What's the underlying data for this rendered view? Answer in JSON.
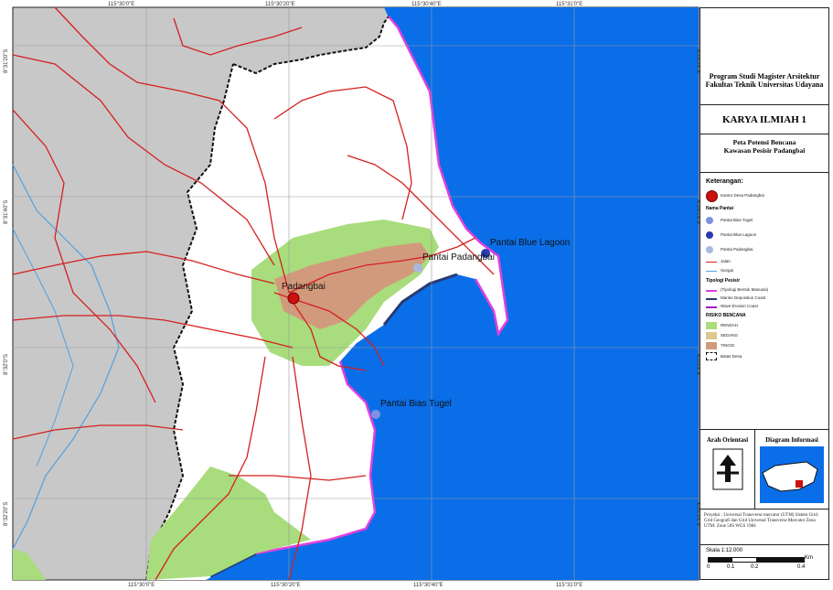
{
  "coords_top": [
    "115°30'0\"E",
    "115°30'20\"E",
    "115°30'40\"E",
    "115°31'0\"E"
  ],
  "coords_bottom": [
    "115°30'0\"E",
    "115°30'20\"E",
    "115°30'40\"E",
    "115°31'0\"E"
  ],
  "coords_left": [
    "8°31'20\"S",
    "8°31'40\"S",
    "8°32'0\"S",
    "8°32'20\"S"
  ],
  "coords_right": [
    "8°31'20\"S",
    "8°31'40\"S",
    "8°32'0\"S",
    "8°32'20\"S"
  ],
  "places": {
    "padangbai": "Padangbai",
    "padangbai_beach": "Pantai Padangbai",
    "blue_lagoon": "Pantai Blue Lagoon",
    "bias_tugel": "Pantai Bias Tugel"
  },
  "panel": {
    "institution": "Program Studi Magister Arsitektur Fakultas Teknik Universitas Udayana",
    "doc_type": "KARYA ILMIAH 1",
    "map_title": "Peta Potensi Bencana Kawasan Pesisir Padangbai",
    "legend_title": "Keterangan:",
    "village_office": "Kantor Desa Padangbai",
    "beach_name_title": "Nama Pantai",
    "beaches": [
      "Pantai Bias Tugel",
      "Pantai Blue Lagoon",
      "Pantai Padangbai"
    ],
    "road": "Jalan",
    "river": "Sungai",
    "coast_type_title": "Tipologi Pesisir",
    "coast_types": [
      "(Tipologi Bentuk Manusia)",
      "Marine Deposition Coast",
      "Wave Erosion Coast"
    ],
    "risk_title": "RISIKO BENCANA",
    "risks": [
      "RENDAH",
      "SEDANG",
      "TINGGI"
    ],
    "village_boundary": "Batas Desa",
    "orientation_title": "Arah Orientasi",
    "info_title": "Diagram Informasi",
    "projection": "Proyeksi : Universal Transverse mercator (UTM) Sistem Grid: Grid Geografi dan Grid Universal Transverse Mercator Zona UTM: Zone 50S WGS 1984",
    "scale_text": "Skala 1:12.000",
    "scale_unit": "Km",
    "scale_ticks": [
      "0",
      "0.1",
      "0.2",
      "0.4"
    ]
  },
  "colors": {
    "sea": "#0a6ee8",
    "land_outside": "#c8c8c8",
    "land_inside": "#ffffff",
    "road": "#d42020",
    "risk_low": "#a8dc7c",
    "risk_mid": "#dcc890",
    "risk_high": "#d29a7c",
    "coast_magenta": "#e040e0",
    "coast_dark": "#2a3a70",
    "river": "#50a0e0"
  }
}
